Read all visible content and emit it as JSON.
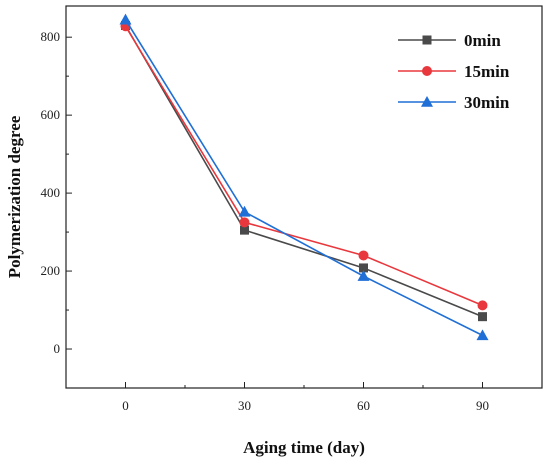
{
  "chart_data": {
    "type": "line",
    "xlabel": "Aging time (day)",
    "ylabel": "Polymerization degree",
    "x": [
      0,
      30,
      60,
      90
    ],
    "xlim": [
      -15,
      105
    ],
    "ylim": [
      -100,
      880
    ],
    "xticks": [
      0,
      30,
      60,
      90
    ],
    "yticks": [
      0,
      200,
      400,
      600,
      800
    ],
    "grid": false,
    "legend_position": "top-right",
    "series": [
      {
        "name": "0min",
        "values": [
          830,
          305,
          208,
          83
        ],
        "color": "#4a4a4a",
        "marker": "square"
      },
      {
        "name": "15min",
        "values": [
          828,
          325,
          240,
          112
        ],
        "color": "#e8383d",
        "marker": "circle"
      },
      {
        "name": "30min",
        "values": [
          845,
          352,
          187,
          35
        ],
        "color": "#1f6fd6",
        "marker": "triangle"
      }
    ]
  }
}
